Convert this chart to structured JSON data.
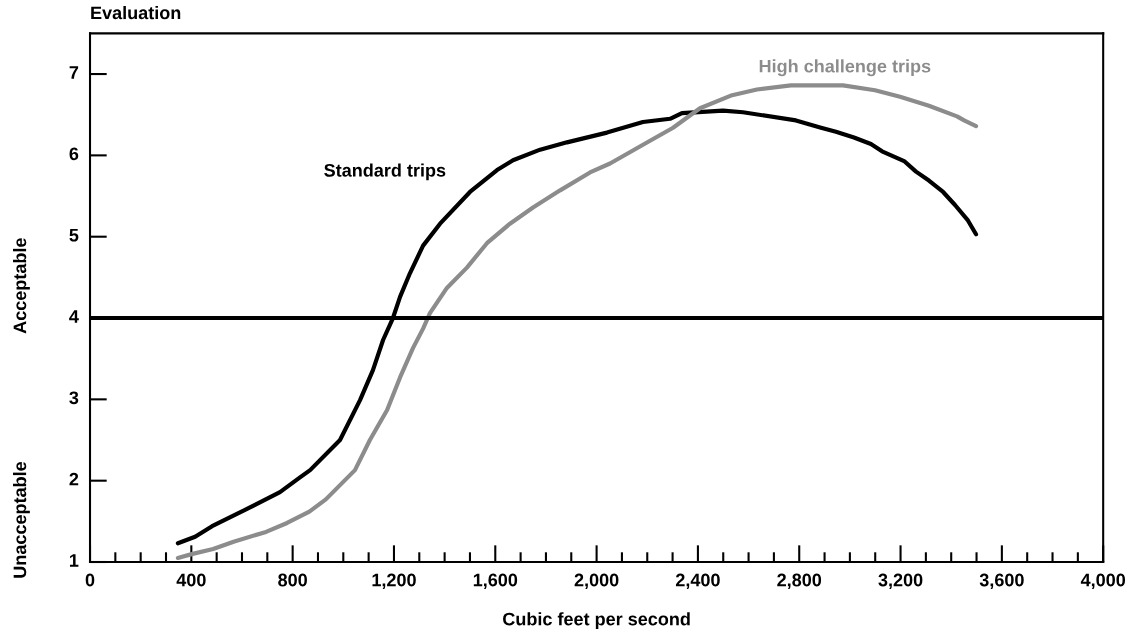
{
  "chart_data": {
    "type": "line",
    "ylabel": "Evaluation",
    "xlabel": "Cubic feet per second",
    "annotations": [
      "Acceptable",
      "Unacceptable"
    ],
    "xlim": [
      0,
      4000
    ],
    "xticks": [
      {
        "value": 0,
        "label": "0"
      },
      {
        "value": 400,
        "label": "400"
      },
      {
        "value": 800,
        "label": "800"
      },
      {
        "value": 1200,
        "label": "1,200"
      },
      {
        "value": 1600,
        "label": "1,600"
      },
      {
        "value": 2000,
        "label": "2,000"
      },
      {
        "value": 2400,
        "label": "2,400"
      },
      {
        "value": 2800,
        "label": "2,800"
      },
      {
        "value": 3200,
        "label": "3,200"
      },
      {
        "value": 3600,
        "label": "3,600"
      },
      {
        "value": 4000,
        "label": "4,000"
      }
    ],
    "ylim": [
      1,
      7.5
    ],
    "yticks": [
      1,
      2,
      3,
      4,
      5,
      6,
      7
    ],
    "grid": false,
    "legend": false,
    "marker": "none",
    "line_style": "solid",
    "ref_lines": [
      {
        "axis": "y",
        "value": 4,
        "color": "#000000"
      }
    ],
    "series": [
      {
        "name": "Standard trips",
        "color": "#000000",
        "x": [
          347,
          415,
          482,
          612,
          750,
          829,
          869,
          987,
          1066,
          1117,
          1157,
          1196,
          1224,
          1263,
          1315,
          1382,
          1500,
          1607,
          1670,
          1777,
          1883,
          2041,
          2183,
          2290,
          2337,
          2499,
          2578,
          2787,
          2886,
          2945,
          3016,
          3083,
          3127,
          3214,
          3261,
          3312,
          3368,
          3415,
          3466,
          3498
        ],
        "values": [
          1.23,
          1.31,
          1.44,
          1.64,
          1.86,
          2.04,
          2.13,
          2.5,
          2.99,
          3.36,
          3.73,
          4.0,
          4.26,
          4.55,
          4.89,
          5.16,
          5.55,
          5.82,
          5.94,
          6.07,
          6.16,
          6.28,
          6.41,
          6.45,
          6.52,
          6.55,
          6.53,
          6.43,
          6.34,
          6.29,
          6.22,
          6.14,
          6.05,
          5.93,
          5.8,
          5.69,
          5.55,
          5.39,
          5.2,
          5.03
        ]
      },
      {
        "name": "High challenge trips",
        "color": "#8c8c8c",
        "x": [
          347,
          405,
          486,
          567,
          695,
          778,
          866,
          931,
          1046,
          1105,
          1173,
          1224,
          1275,
          1315,
          1342,
          1409,
          1488,
          1567,
          1658,
          1749,
          1856,
          1974,
          2053,
          2211,
          2302,
          2408,
          2535,
          2633,
          2767,
          2973,
          3099,
          3198,
          3312,
          3423,
          3451,
          3498
        ],
        "values": [
          1.05,
          1.1,
          1.16,
          1.25,
          1.37,
          1.48,
          1.62,
          1.77,
          2.13,
          2.5,
          2.87,
          3.27,
          3.63,
          3.87,
          4.06,
          4.37,
          4.62,
          4.92,
          5.16,
          5.36,
          5.57,
          5.79,
          5.9,
          6.18,
          6.34,
          6.58,
          6.74,
          6.81,
          6.86,
          6.86,
          6.8,
          6.72,
          6.61,
          6.48,
          6.43,
          6.36
        ]
      }
    ]
  }
}
